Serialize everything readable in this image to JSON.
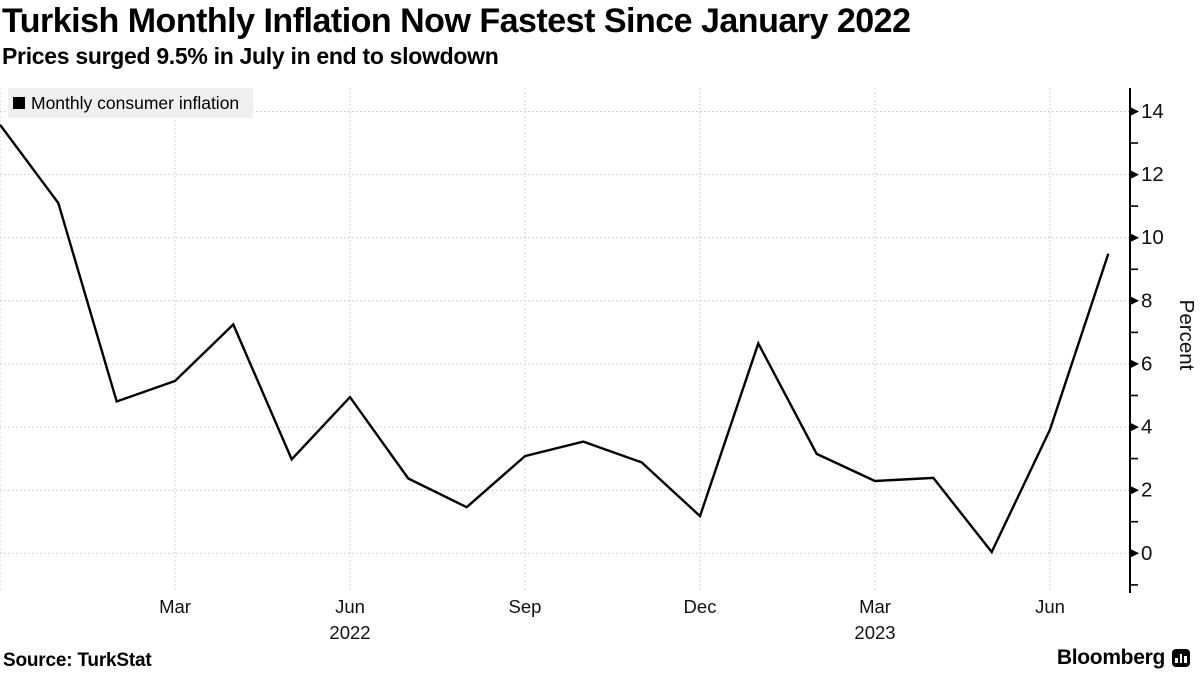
{
  "header": {
    "title": "Turkish Monthly Inflation Now Fastest Since January 2022",
    "subtitle": "Prices surged 9.5% in July in end to slowdown"
  },
  "legend": {
    "marker": "black-square",
    "label": "Monthly consumer inflation"
  },
  "footer": {
    "source": "Source: TurkStat",
    "brand": "Bloomberg"
  },
  "colors": {
    "background": "#ffffff",
    "line": "#000000",
    "grid": "#c6c6c6",
    "axis": "#000000",
    "text": "#111111",
    "legend_bg": "#efefef"
  },
  "chart_data": {
    "type": "line",
    "title": "Turkish Monthly Inflation Now Fastest Since January 2022",
    "subtitle": "Prices surged 9.5% in July in end to slowdown",
    "xlabel": "",
    "ylabel": "Percent",
    "ylim": [
      -1.3,
      14.75
    ],
    "grid": true,
    "legend_position": "top-left",
    "y_axis_side": "right",
    "series": [
      {
        "name": "Monthly consumer inflation",
        "color": "#000000",
        "x": [
          "Dec 2021",
          "Jan 2022",
          "Feb 2022",
          "Mar 2022",
          "Apr 2022",
          "May 2022",
          "Jun 2022",
          "Jul 2022",
          "Aug 2022",
          "Sep 2022",
          "Oct 2022",
          "Nov 2022",
          "Dec 2022",
          "Jan 2023",
          "Feb 2023",
          "Mar 2023",
          "Apr 2023",
          "May 2023",
          "Jun 2023",
          "Jul 2023"
        ],
        "values": [
          13.58,
          11.1,
          4.81,
          5.46,
          7.25,
          2.98,
          4.95,
          2.37,
          1.46,
          3.08,
          3.54,
          2.88,
          1.18,
          6.65,
          3.15,
          2.29,
          2.39,
          0.04,
          3.92,
          9.49
        ]
      }
    ],
    "x_grid_indices": [
      0,
      3,
      6,
      9,
      12,
      15,
      18
    ],
    "x_ticks": [
      {
        "index": 3,
        "label": "Mar",
        "year": ""
      },
      {
        "index": 6,
        "label": "Jun",
        "year": "2022"
      },
      {
        "index": 9,
        "label": "Sep",
        "year": ""
      },
      {
        "index": 12,
        "label": "Dec",
        "year": ""
      },
      {
        "index": 15,
        "label": "Mar",
        "year": "2023"
      },
      {
        "index": 18,
        "label": "Jun",
        "year": ""
      }
    ],
    "y_ticks_major": [
      0,
      2,
      4,
      6,
      8,
      10,
      12,
      14
    ],
    "y_ticks_minor": [
      -1,
      1,
      3,
      5,
      7,
      9,
      11,
      13
    ]
  }
}
